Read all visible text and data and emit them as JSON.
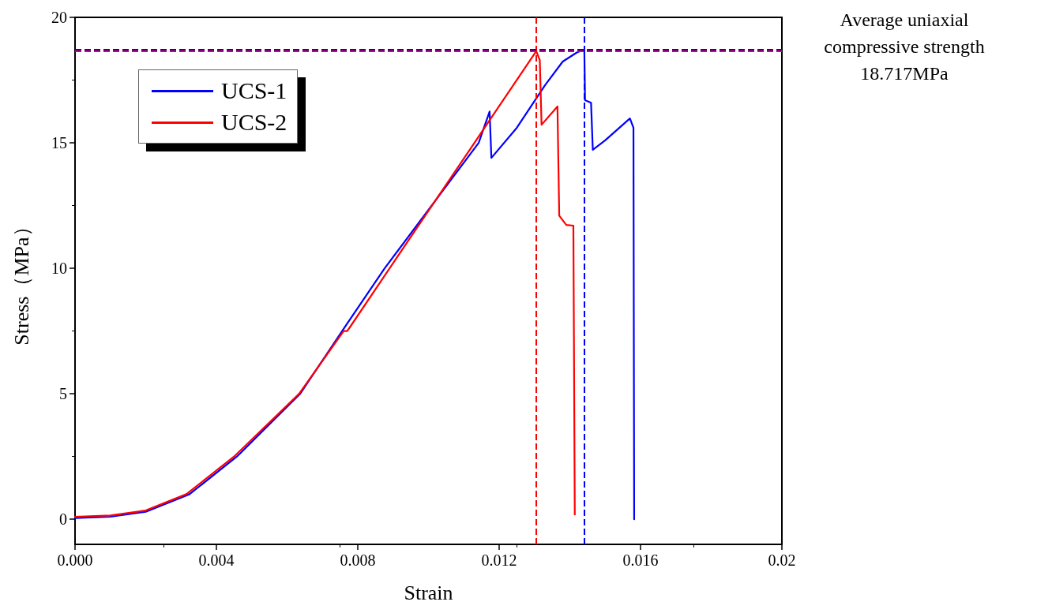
{
  "chart_data": {
    "type": "line",
    "xlabel": "Strain",
    "ylabel": "Stress（MPa）",
    "xlim": [
      0,
      0.02
    ],
    "ylim": [
      -1,
      20
    ],
    "xticks": [
      {
        "value": 0,
        "label": "0.000"
      },
      {
        "value": 0.004,
        "label": "0.004"
      },
      {
        "value": 0.008,
        "label": "0.008"
      },
      {
        "value": 0.012,
        "label": "0.012"
      },
      {
        "value": 0.016,
        "label": "0.016"
      },
      {
        "value": 0.02,
        "label": "0.02"
      }
    ],
    "yticks": [
      0,
      5,
      10,
      15,
      20
    ],
    "series": [
      {
        "name": "UCS-1",
        "color": "#0000ff",
        "x": [
          0,
          0.001,
          0.002,
          0.00324,
          0.00458,
          0.00637,
          0.0077,
          0.00876,
          0.01142,
          0.01173,
          0.01178,
          0.0125,
          0.0133,
          0.0138,
          0.0142,
          0.01441,
          0.01443,
          0.0146,
          0.01465,
          0.015,
          0.0157,
          0.0158,
          0.01582
        ],
        "values": [
          0.05,
          0.1,
          0.3,
          1,
          2.5,
          5,
          7.8,
          10,
          15,
          16.25,
          14.4,
          15.6,
          17.3,
          18.24,
          18.6,
          18.72,
          16.7,
          16.6,
          14.72,
          15.1,
          15.97,
          15.6,
          0
        ]
      },
      {
        "name": "UCS-2",
        "color": "#ff0000",
        "x": [
          0,
          0.001,
          0.002,
          0.00315,
          0.0045,
          0.00634,
          0.0076,
          0.0077,
          0.0078,
          0.0089,
          0.0113,
          0.01173,
          0.01305,
          0.01315,
          0.0132,
          0.01365,
          0.0137,
          0.0139,
          0.0141,
          0.01414
        ],
        "values": [
          0.1,
          0.15,
          0.35,
          1,
          2.5,
          5,
          7.5,
          7.5,
          7.7,
          10,
          15,
          15.9,
          18.65,
          18.3,
          15.72,
          16.45,
          12.1,
          11.73,
          11.7,
          0.19
        ]
      }
    ],
    "ref_lines": [
      {
        "axis": "x",
        "value": 0.01305,
        "color": "#ff0000",
        "line_style": "dashed"
      },
      {
        "axis": "y",
        "value": 18.65,
        "color": "#ff0000",
        "line_style": "dashed"
      },
      {
        "axis": "x",
        "value": 0.01441,
        "color": "#0000ff",
        "line_style": "dashed"
      },
      {
        "axis": "y",
        "value": 18.72,
        "color": "#0000ff",
        "line_style": "dashed"
      }
    ],
    "annotations": [
      "Average uniaxial compressive strength 18.717MPa"
    ],
    "legend": "top left",
    "grid": false,
    "marker": "none",
    "line_style": "solid"
  }
}
